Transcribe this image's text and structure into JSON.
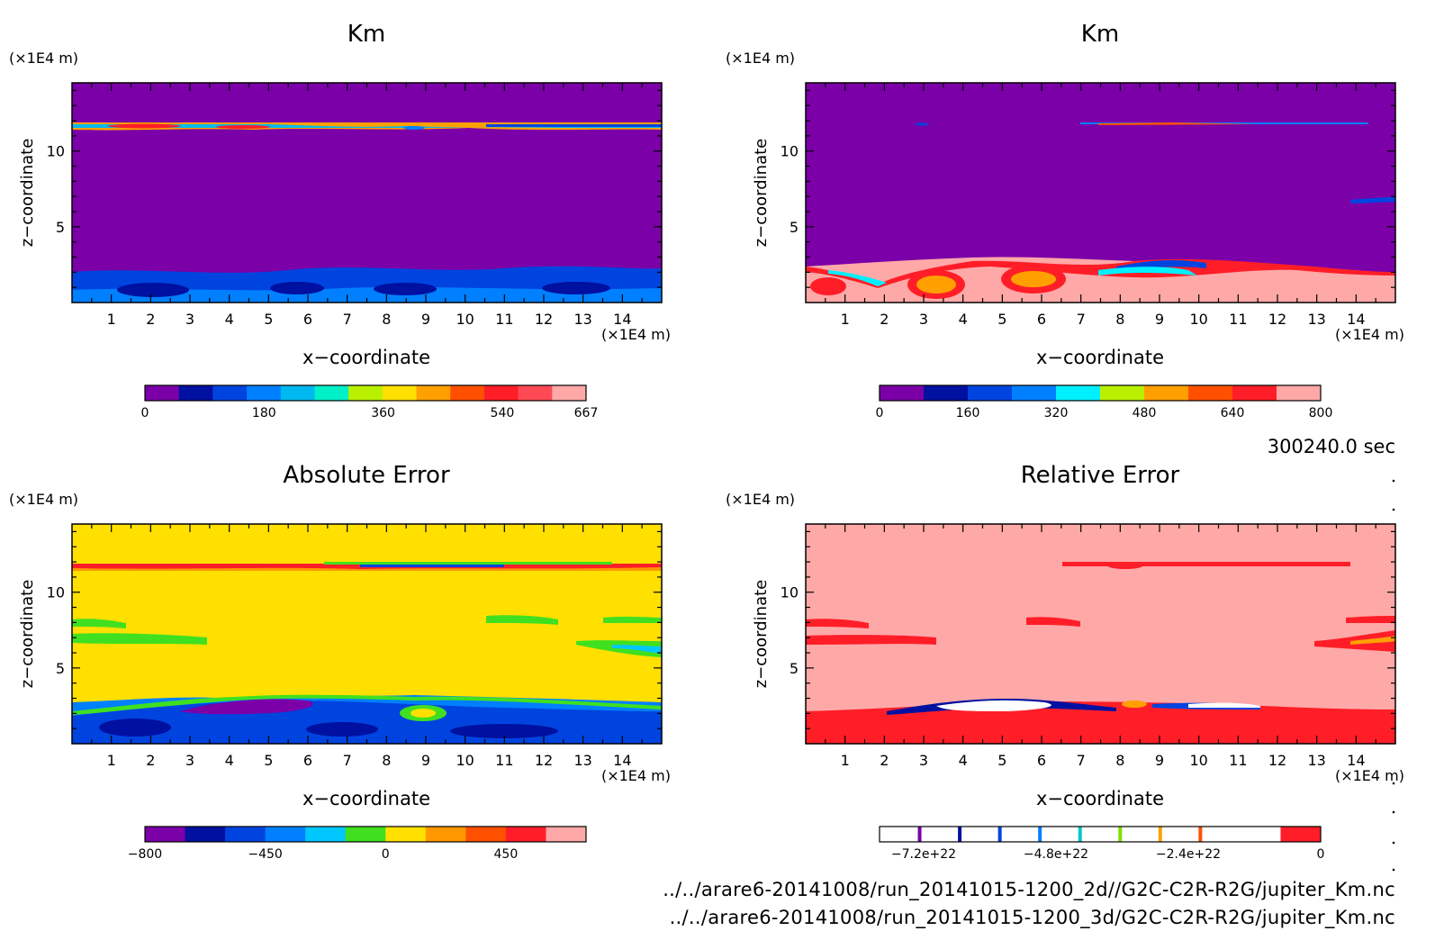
{
  "time_label": "300240.0 sec",
  "files": [
    "../../arare6-20141008/run_20141015-1200_2d//G2C-C2R-R2G/jupiter_Km.nc",
    "../../arare6-20141008/run_20141015-1200_3d/G2C-C2R-R2G/jupiter_Km.nc"
  ],
  "chart_data": [
    {
      "type": "heatmap",
      "title": "Km",
      "xlabel": "x−coordinate",
      "ylabel": "z−coordinate",
      "x_unit": "(×1E4 m)",
      "y_unit": "(×1E4 m)",
      "xlim": [
        0,
        15
      ],
      "ylim": [
        0,
        14.5
      ],
      "x_ticks": [
        "1",
        "2",
        "3",
        "4",
        "5",
        "6",
        "7",
        "8",
        "9",
        "10",
        "11",
        "12",
        "13",
        "14"
      ],
      "y_ticks": [
        "5",
        "10"
      ],
      "colorbar": {
        "colors": [
          "#7b00a8",
          "#0010a0",
          "#0044e0",
          "#0080ff",
          "#00b8f0",
          "#00f0c8",
          "#b8f000",
          "#ffe000",
          "#ffa000",
          "#ff5000",
          "#ff1e28",
          "#ff4a55",
          "#ffa8a8"
        ],
        "labels": [
          "0",
          "180",
          "360",
          "540",
          "667"
        ]
      }
    },
    {
      "type": "heatmap",
      "title": "Km",
      "xlabel": "x−coordinate",
      "ylabel": "z−coordinate",
      "x_unit": "(×1E4 m)",
      "y_unit": "(×1E4 m)",
      "xlim": [
        0,
        15
      ],
      "ylim": [
        0,
        14.5
      ],
      "x_ticks": [
        "1",
        "2",
        "3",
        "4",
        "5",
        "6",
        "7",
        "8",
        "9",
        "10",
        "11",
        "12",
        "13",
        "14"
      ],
      "y_ticks": [
        "5",
        "10"
      ],
      "colorbar": {
        "colors": [
          "#7b00a8",
          "#0010a0",
          "#0044e0",
          "#0080ff",
          "#00f0ff",
          "#b8f000",
          "#ffa000",
          "#ff5000",
          "#ff1e28",
          "#ffa8a8"
        ],
        "labels": [
          "0",
          "160",
          "320",
          "480",
          "640",
          "800"
        ]
      }
    },
    {
      "type": "heatmap",
      "title": "Absolute Error",
      "xlabel": "x−coordinate",
      "ylabel": "z−coordinate",
      "x_unit": "(×1E4 m)",
      "y_unit": "(×1E4 m)",
      "xlim": [
        0,
        15
      ],
      "ylim": [
        0,
        14.5
      ],
      "x_ticks": [
        "1",
        "2",
        "3",
        "4",
        "5",
        "6",
        "7",
        "8",
        "9",
        "10",
        "11",
        "12",
        "13",
        "14"
      ],
      "y_ticks": [
        "5",
        "10"
      ],
      "colorbar": {
        "colors": [
          "#7b00a8",
          "#0010a0",
          "#0044e0",
          "#0080ff",
          "#00c8ff",
          "#40e020",
          "#ffe000",
          "#ff9800",
          "#ff5000",
          "#ff1e28",
          "#ffa8a8"
        ],
        "labels": [
          "−800",
          "−450",
          "0",
          "450"
        ]
      }
    },
    {
      "type": "heatmap",
      "title": "Relative Error",
      "xlabel": "x−coordinate",
      "ylabel": "z−coordinate",
      "x_unit": "(×1E4 m)",
      "y_unit": "(×1E4 m)",
      "xlim": [
        0,
        15
      ],
      "ylim": [
        0,
        14.5
      ],
      "x_ticks": [
        "1",
        "2",
        "3",
        "4",
        "5",
        "6",
        "7",
        "8",
        "9",
        "10",
        "11",
        "12",
        "13",
        "14"
      ],
      "y_ticks": [
        "5",
        "10"
      ],
      "colorbar": {
        "colors": [
          "#ffffff",
          "#ffffff",
          "#ffffff",
          "#ffffff",
          "#ffffff",
          "#ffffff",
          "#ffffff",
          "#ffffff",
          "#ffffff",
          "#ffffff",
          "#ff1e28"
        ],
        "stripe_colors": [
          "#7b00a8",
          "#0010a0",
          "#0044e0",
          "#0080ff",
          "#00c8c8",
          "#80e000",
          "#ffa000",
          "#ff5000"
        ],
        "labels": [
          "−7.2e+22",
          "−4.8e+22",
          "−2.4e+22",
          "0"
        ]
      }
    }
  ]
}
